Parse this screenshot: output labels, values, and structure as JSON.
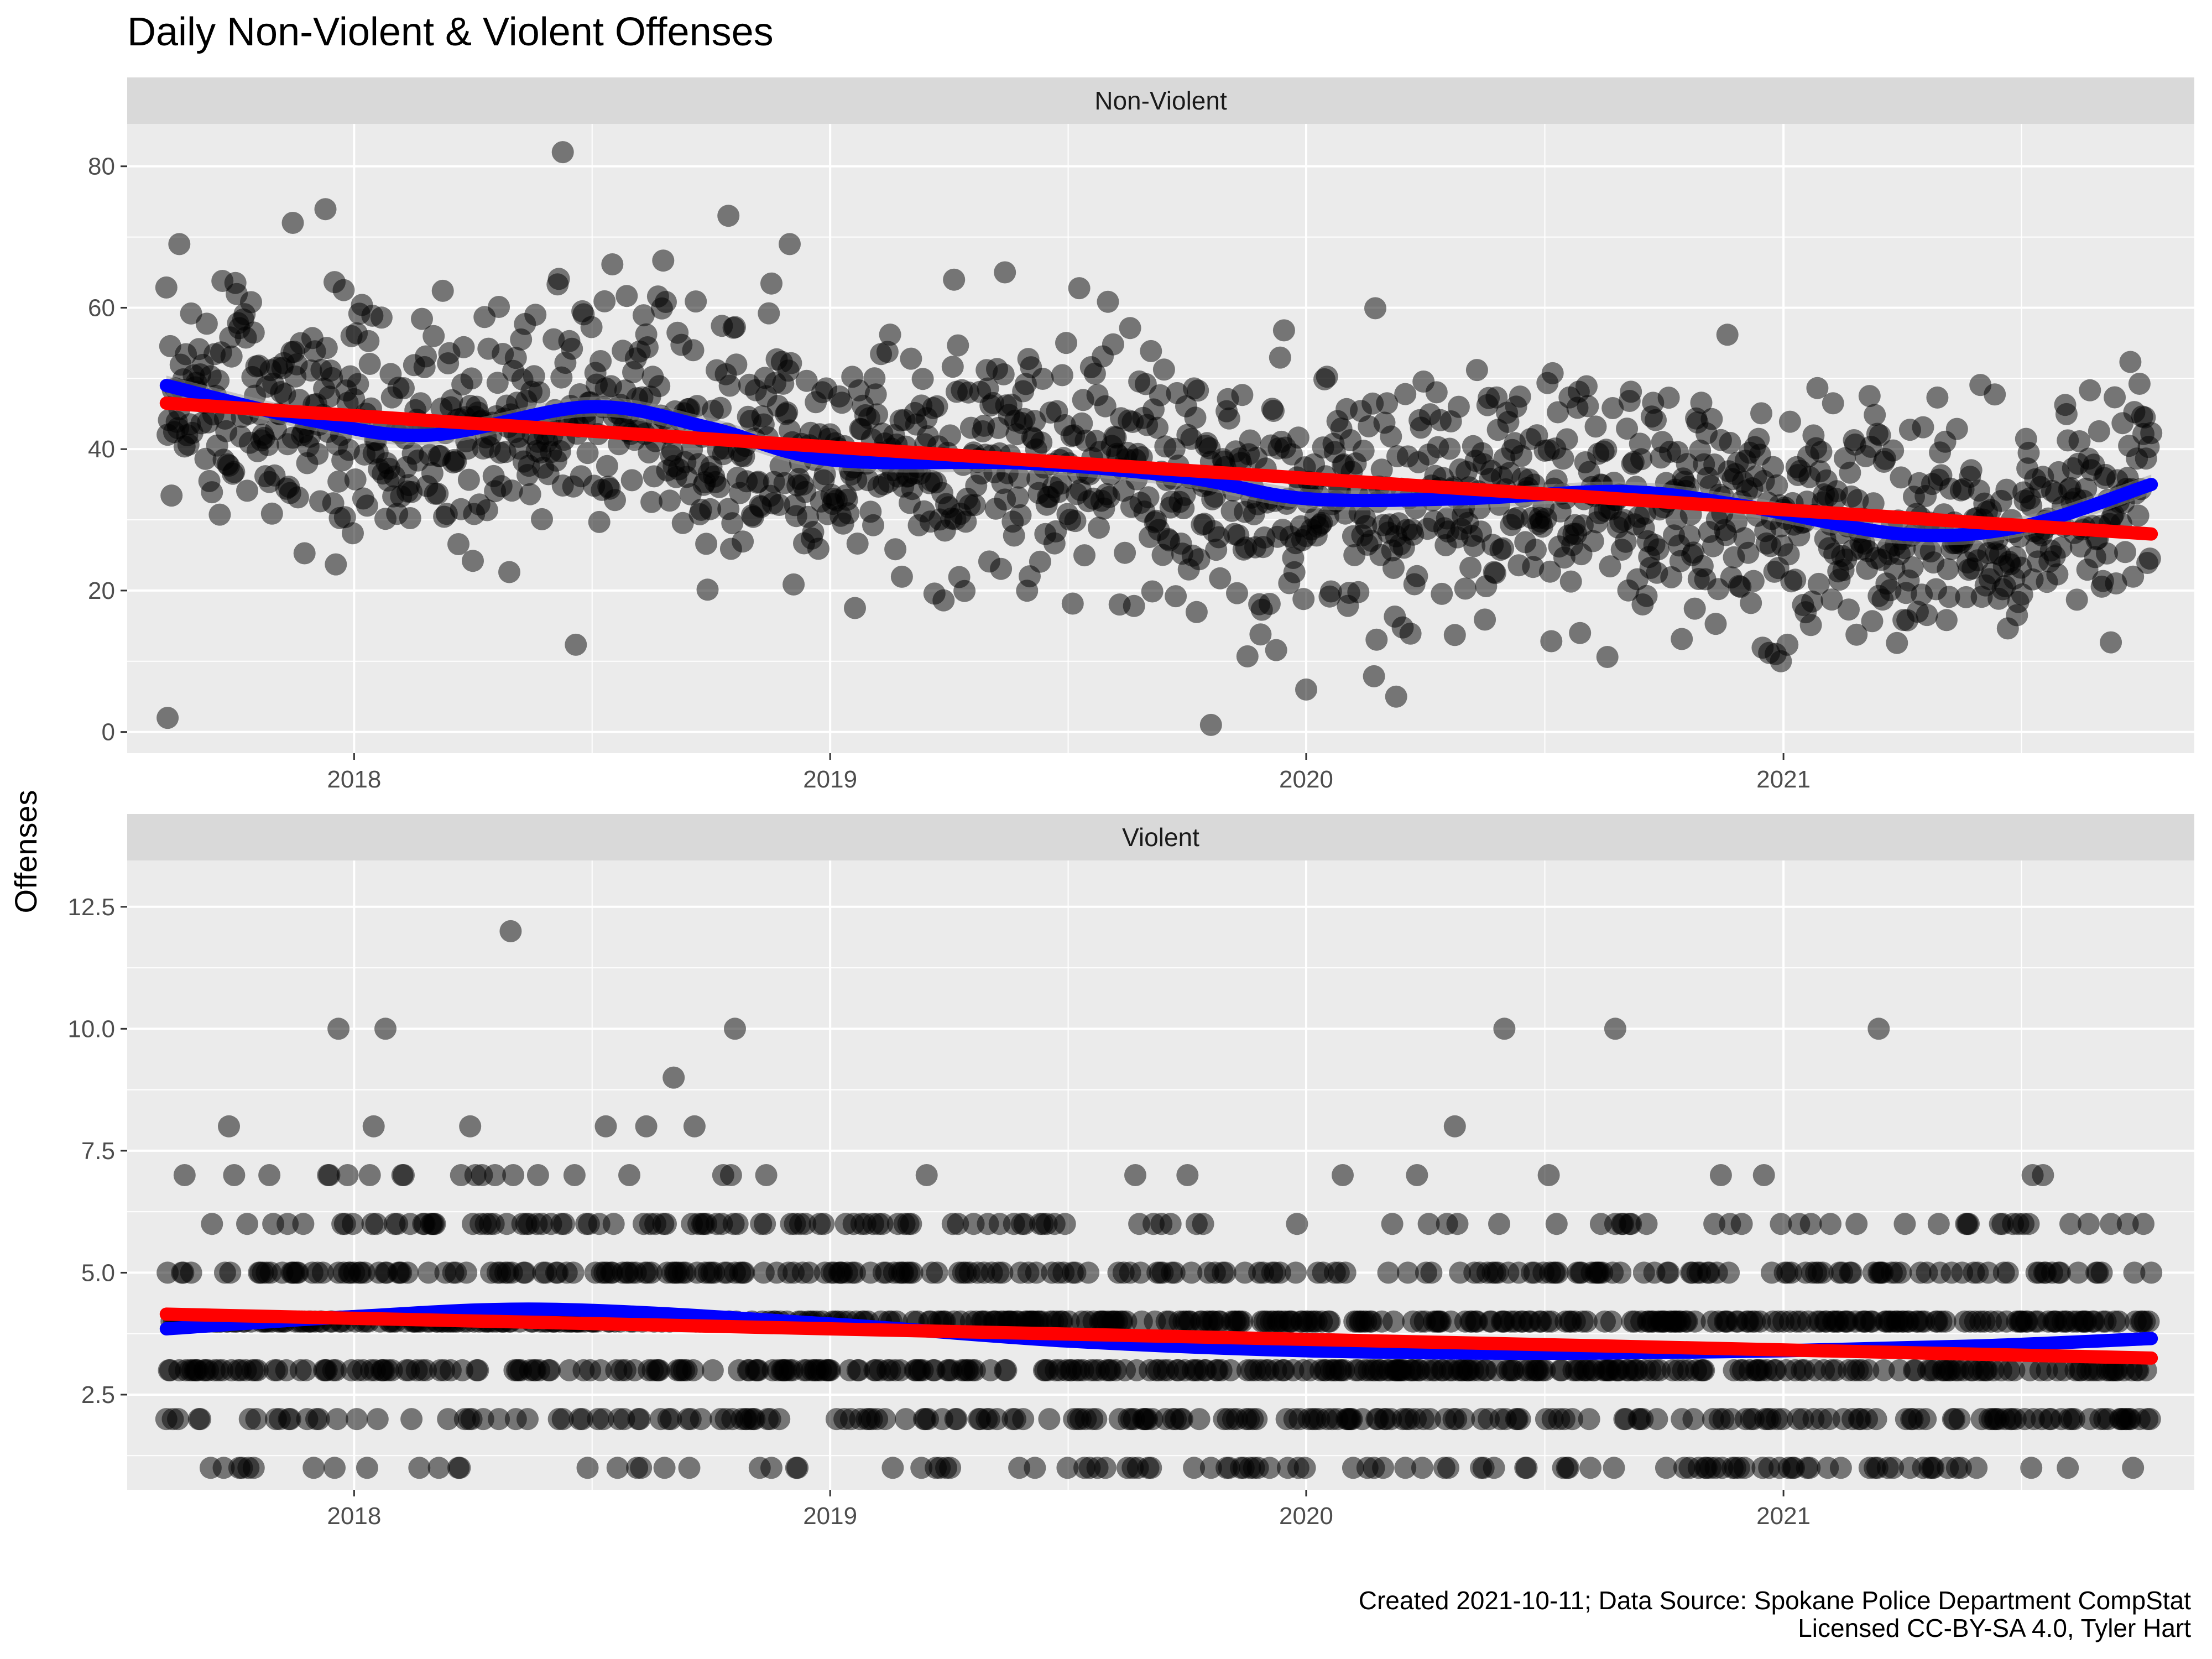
{
  "title": "Daily Non-Violent & Violent Offenses",
  "ylabel": "Offenses",
  "caption": {
    "line1": "Created 2021-10-11; Data Source: Spokane Police Department CompStat",
    "line2": "Licensed CC-BY-SA 4.0, Tyler Hart"
  },
  "colors": {
    "panel_bg": "#ebebeb",
    "strip_bg": "#d9d9d9",
    "grid": "#ffffff",
    "points": "#000000",
    "smooth": "#0000ff",
    "linear": "#ff0000",
    "ribbon": "#999999"
  },
  "chart_data": [
    {
      "type": "scatter",
      "facet": "Non-Violent",
      "x_axis": {
        "min": "2017-07-11",
        "max": "2021-11-12",
        "tick_labels": [
          "2018",
          "2019",
          "2020",
          "2021"
        ],
        "tick_dates": [
          "2018-01-01",
          "2019-01-01",
          "2020-01-01",
          "2021-01-01"
        ]
      },
      "y_axis": {
        "min": -3,
        "max": 86,
        "ticks": [
          0,
          20,
          40,
          60,
          80
        ],
        "tick_labels": [
          "0",
          "20",
          "40",
          "60",
          "80"
        ]
      },
      "grid": true,
      "date_range": [
        "2017-08-10",
        "2021-10-10"
      ],
      "trend_linear": {
        "x": [
          "2017-08-10",
          "2021-10-10"
        ],
        "y": [
          46.5,
          28
        ]
      },
      "trend_smooth": {
        "x": [
          "2017-08-10",
          "2017-12-01",
          "2018-03-01",
          "2018-07-01",
          "2018-10-01",
          "2019-01-01",
          "2019-06-01",
          "2019-10-01",
          "2020-01-01",
          "2020-05-01",
          "2020-09-01",
          "2020-12-01",
          "2021-04-01",
          "2021-07-01",
          "2021-10-10"
        ],
        "y": [
          49,
          44,
          42,
          46,
          43,
          38.5,
          38,
          36,
          33,
          33,
          34,
          32,
          28,
          29,
          35
        ]
      },
      "notable_points": [
        {
          "x": "2018-06-10",
          "y": 82
        },
        {
          "x": "2018-10-15",
          "y": 73
        },
        {
          "x": "2017-11-15",
          "y": 72
        },
        {
          "x": "2017-08-20",
          "y": 69
        },
        {
          "x": "2018-12-01",
          "y": 69
        },
        {
          "x": "2019-05-15",
          "y": 65
        },
        {
          "x": "2017-08-11",
          "y": 2
        },
        {
          "x": "2019-10-20",
          "y": 1
        },
        {
          "x": "2020-01-01",
          "y": 6
        },
        {
          "x": "2020-03-10",
          "y": 5
        },
        {
          "x": "2020-12-30",
          "y": 10
        }
      ]
    },
    {
      "type": "scatter",
      "facet": "Violent",
      "x_axis": {
        "min": "2017-07-11",
        "max": "2021-11-12",
        "tick_labels": [
          "2018",
          "2019",
          "2020",
          "2021"
        ],
        "tick_dates": [
          "2018-01-01",
          "2019-01-01",
          "2020-01-01",
          "2021-01-01"
        ]
      },
      "y_axis": {
        "min": 0.55,
        "max": 13.45,
        "ticks": [
          2.5,
          5.0,
          7.5,
          10.0,
          12.5
        ],
        "tick_labels": [
          "2.5",
          "5.0",
          "7.5",
          "10.0",
          "12.5"
        ]
      },
      "grid": true,
      "date_range": [
        "2017-08-10",
        "2021-10-10"
      ],
      "trend_linear": {
        "x": [
          "2017-08-10",
          "2021-10-10"
        ],
        "y": [
          4.15,
          3.25
        ]
      },
      "trend_smooth": {
        "x": [
          "2017-08-10",
          "2018-01-01",
          "2018-06-01",
          "2019-01-01",
          "2019-07-01",
          "2020-01-01",
          "2020-07-01",
          "2021-01-01",
          "2021-06-01",
          "2021-10-10"
        ],
        "y": [
          3.85,
          4.1,
          4.25,
          3.95,
          3.6,
          3.4,
          3.35,
          3.4,
          3.5,
          3.65
        ]
      },
      "notable_points": [
        {
          "x": "2018-05-01",
          "y": 12
        },
        {
          "x": "2017-12-20",
          "y": 10
        },
        {
          "x": "2018-01-25",
          "y": 10
        },
        {
          "x": "2018-10-20",
          "y": 10
        },
        {
          "x": "2020-06-01",
          "y": 10
        },
        {
          "x": "2020-08-25",
          "y": 10
        },
        {
          "x": "2021-03-15",
          "y": 10
        }
      ]
    }
  ]
}
